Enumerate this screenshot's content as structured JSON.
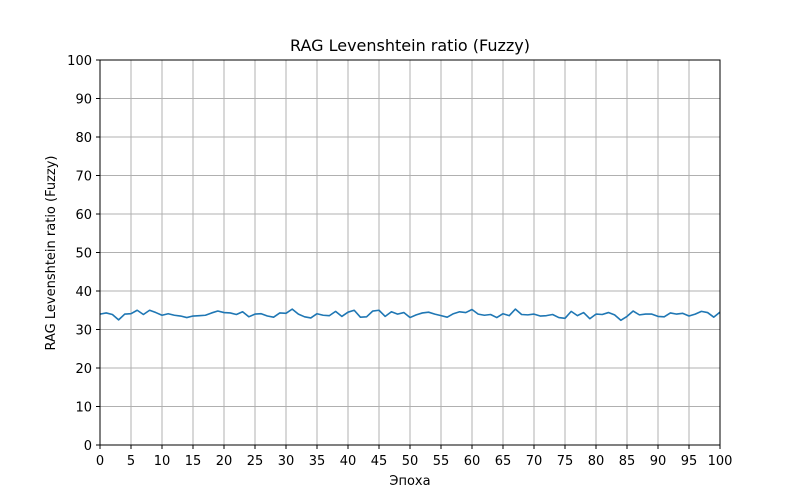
{
  "chart_data": {
    "type": "line",
    "title": "RAG Levenshtein ratio (Fuzzy)",
    "xlabel": "Эпоха",
    "ylabel": "RAG Levenshtein ratio (Fuzzy)",
    "xlim": [
      0,
      100
    ],
    "ylim": [
      0,
      100
    ],
    "xticks": [
      "0",
      "5",
      "10",
      "15",
      "20",
      "25",
      "30",
      "35",
      "40",
      "45",
      "50",
      "55",
      "60",
      "65",
      "70",
      "75",
      "80",
      "85",
      "90",
      "95",
      "100"
    ],
    "yticks": [
      "0",
      "10",
      "20",
      "30",
      "40",
      "50",
      "60",
      "70",
      "80",
      "90",
      "100"
    ],
    "grid": true,
    "line_color": "#1f77b4",
    "series": [
      {
        "x": [
          0,
          1,
          2,
          3,
          4,
          5,
          6,
          7,
          8,
          9,
          10,
          11,
          12,
          13,
          14,
          15,
          16,
          17,
          18,
          19,
          20,
          21,
          22,
          23,
          24,
          25,
          26,
          27,
          28,
          29,
          30,
          31,
          32,
          33,
          34,
          35,
          36,
          37,
          38,
          39,
          40,
          41,
          42,
          43,
          44,
          45,
          46,
          47,
          48,
          49,
          50,
          51,
          52,
          53,
          54,
          55,
          56,
          57,
          58,
          59,
          60,
          61,
          62,
          63,
          64,
          65,
          66,
          67,
          68,
          69,
          70,
          71,
          72,
          73,
          74,
          75,
          76,
          77,
          78,
          79,
          80,
          81,
          82,
          83,
          84,
          85,
          86,
          87,
          88,
          89,
          90,
          91,
          92,
          93,
          94,
          95,
          96,
          97,
          98,
          99,
          100
        ],
        "values": [
          34.0,
          34.3,
          33.9,
          32.5,
          34.0,
          34.1,
          35.0,
          33.9,
          35.0,
          34.4,
          33.7,
          34.1,
          33.7,
          33.5,
          33.1,
          33.5,
          33.6,
          33.7,
          34.3,
          34.8,
          34.4,
          34.3,
          33.9,
          34.6,
          33.3,
          34.0,
          34.1,
          33.5,
          33.2,
          34.3,
          34.2,
          35.3,
          34.0,
          33.3,
          33.0,
          34.1,
          33.7,
          33.6,
          34.7,
          33.4,
          34.5,
          35.0,
          33.2,
          33.3,
          34.8,
          35.0,
          33.4,
          34.6,
          34.0,
          34.4,
          33.1,
          33.8,
          34.3,
          34.5,
          34.0,
          33.6,
          33.2,
          34.1,
          34.6,
          34.4,
          35.2,
          34.0,
          33.7,
          33.9,
          33.1,
          34.1,
          33.6,
          35.3,
          33.9,
          33.8,
          34.0,
          33.5,
          33.6,
          33.9,
          33.1,
          32.9,
          34.7,
          33.6,
          34.4,
          32.8,
          34.0,
          33.9,
          34.4,
          33.8,
          32.4,
          33.4,
          34.8,
          33.8,
          34.0,
          34.0,
          33.4,
          33.3,
          34.3,
          34.0,
          34.2,
          33.5,
          34.0,
          34.7,
          34.4,
          33.2,
          34.5
        ]
      }
    ]
  }
}
